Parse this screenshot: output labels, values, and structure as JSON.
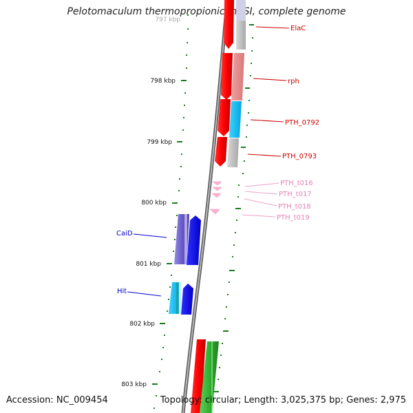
{
  "title": "Pelotomaculum thermopropionicum SI, complete genome",
  "footer": {
    "accession": "Accession: NC_009454",
    "topology": "Topology: circular; Length: 3,025,375 bp; Genes: 2,975"
  },
  "kbp_labels": [
    "797 kbp",
    "798 kbp",
    "799 kbp",
    "800 kbp",
    "801 kbp",
    "802 kbp",
    "803 kbp"
  ],
  "gene_labels": [
    {
      "text": "ElaC",
      "color": "#cc0000"
    },
    {
      "text": "rph",
      "color": "#cc0000"
    },
    {
      "text": "PTH_0792",
      "color": "#cc0000"
    },
    {
      "text": "PTH_0793",
      "color": "#cc0000"
    },
    {
      "text": "PTH_t016",
      "color": "#e880b4"
    },
    {
      "text": "PTH_t017",
      "color": "#e880b4"
    },
    {
      "text": "PTH_t018",
      "color": "#e880b4"
    },
    {
      "text": "PTH_t019",
      "color": "#e880b4"
    },
    {
      "text": "CaiD",
      "color": "#0000cc"
    },
    {
      "text": "Hit",
      "color": "#0000cc"
    }
  ],
  "colors": {
    "forward_strand": "#ff0000",
    "reverse_strand_blue": "#0000ff",
    "trna": "#ffb0d0",
    "scale_ticks": "#1a7a1a",
    "backbone": "#888888"
  }
}
